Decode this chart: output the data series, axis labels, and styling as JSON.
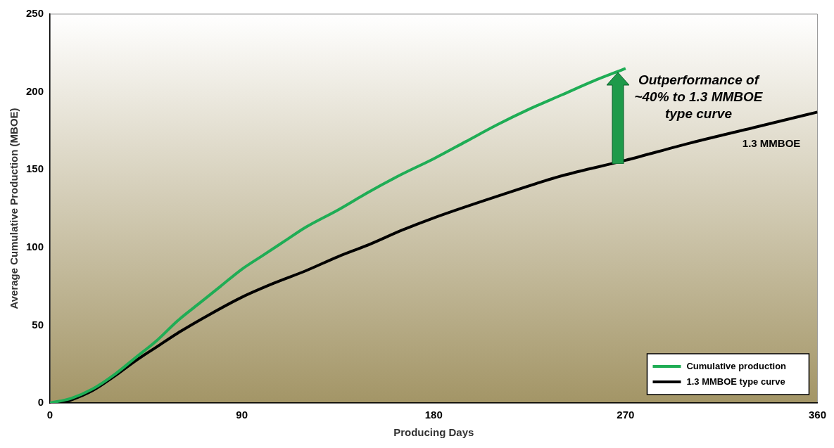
{
  "chart_data": {
    "type": "line",
    "xlabel": "Producing Days",
    "ylabel": "Average Cumulative Production (MBOE)",
    "xlim": [
      0,
      360
    ],
    "xticks": [
      0,
      90,
      180,
      270,
      360
    ],
    "ylim": [
      0,
      250
    ],
    "yticks": [
      0,
      50,
      100,
      150,
      200,
      250
    ],
    "grid": false,
    "legend": "bottom right",
    "marker": "none",
    "line_style": "solid",
    "series": [
      {
        "name": "Cumulative production",
        "color": "#1fad55",
        "x": [
          0,
          10,
          20,
          30,
          40,
          50,
          60,
          70,
          80,
          90,
          100,
          110,
          120,
          135,
          150,
          165,
          180,
          195,
          210,
          225,
          240,
          255,
          270
        ],
        "values": [
          0,
          3,
          9,
          18,
          29,
          40,
          53,
          64,
          75,
          86,
          95,
          104,
          113,
          124,
          136,
          147,
          157,
          168,
          179,
          189,
          198,
          207,
          215
        ]
      },
      {
        "name": "1.3 MMBOE type curve",
        "color": "#000000",
        "x": [
          0,
          5,
          10,
          20,
          30,
          40,
          50,
          60,
          75,
          90,
          105,
          120,
          135,
          150,
          165,
          180,
          210,
          240,
          270,
          300,
          330,
          360
        ],
        "values": [
          0,
          0,
          2,
          8,
          17,
          27,
          36,
          45,
          57,
          68,
          77,
          85,
          94,
          102,
          111,
          119,
          133,
          146,
          156,
          167,
          177,
          187
        ]
      }
    ],
    "annotations": [
      "Outperformance of ~40% to 1.3 MMBOE type curve",
      "1.3 MMBOE"
    ]
  }
}
